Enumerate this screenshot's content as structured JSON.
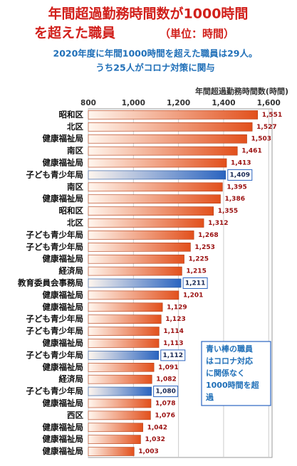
{
  "chart_data": {
    "type": "bar",
    "orientation": "horizontal",
    "title": [
      "年間超過勤務時間数が1000時間",
      "を超えた職員"
    ],
    "title_note": "（単位：時間）",
    "subtitle": [
      "2020年度に年間1000時間を超えた職員は29人。",
      "うち25人がコロナ対策に関与"
    ],
    "x_label": "年間超過勤務時間数(時間)",
    "categories": [
      "昭和区",
      "北区",
      "健康福祉局",
      "南区",
      "健康福祉局",
      "子ども青少年局",
      "南区",
      "健康福祉局",
      "昭和区",
      "北区",
      "子ども青少年局",
      "子ども青少年局",
      "健康福祉局",
      "経済局",
      "教育委員会事務局",
      "健康福祉局",
      "健康福祉局",
      "子ども青少年局",
      "子ども青少年局",
      "健康福祉局",
      "子ども青少年局",
      "健康福祉局",
      "経済局",
      "子ども青少年局",
      "健康福祉局",
      "西区",
      "健康福祉局",
      "健康福祉局",
      "健康福祉局"
    ],
    "values": [
      1551,
      1527,
      1503,
      1461,
      1413,
      1409,
      1395,
      1386,
      1355,
      1312,
      1268,
      1253,
      1225,
      1215,
      1211,
      1201,
      1129,
      1123,
      1114,
      1113,
      1112,
      1091,
      1082,
      1080,
      1078,
      1076,
      1042,
      1032,
      1003
    ],
    "value_labels": [
      "1,551",
      "1,527",
      "1,503",
      "1,461",
      "1,413",
      "1,409",
      "1,395",
      "1,386",
      "1,355",
      "1,312",
      "1,268",
      "1,253",
      "1,225",
      "1,215",
      "1,211",
      "1,201",
      "1,129",
      "1,123",
      "1,114",
      "1,113",
      "1,112",
      "1,091",
      "1,082",
      "1,080",
      "1,078",
      "1,076",
      "1,042",
      "1,032",
      "1,003"
    ],
    "colors": [
      "#e2501c",
      "#e2501c",
      "#e2501c",
      "#e2501c",
      "#e2501c",
      "#2a64c0",
      "#e2501c",
      "#e2501c",
      "#e2501c",
      "#e2501c",
      "#e2501c",
      "#e2501c",
      "#e2501c",
      "#e2501c",
      "#2a64c0",
      "#e2501c",
      "#e2501c",
      "#e2501c",
      "#e2501c",
      "#e2501c",
      "#2a64c0",
      "#e2501c",
      "#e2501c",
      "#2a64c0",
      "#e2501c",
      "#e2501c",
      "#e2501c",
      "#e2501c",
      "#e2501c"
    ],
    "xlim": [
      800,
      1615
    ],
    "xticks": [
      800,
      {
        "value": 1000,
        "label": "1,000"
      },
      {
        "value": 1200,
        "label": "1,200"
      },
      {
        "value": 1400,
        "label": "1,400"
      },
      {
        "value": 1600,
        "label": "1,600"
      }
    ],
    "grid": true,
    "annotation": [
      "青い棒の職員",
      "はコロナ対応",
      "に関係なく",
      "1000時間を超",
      "過"
    ]
  }
}
